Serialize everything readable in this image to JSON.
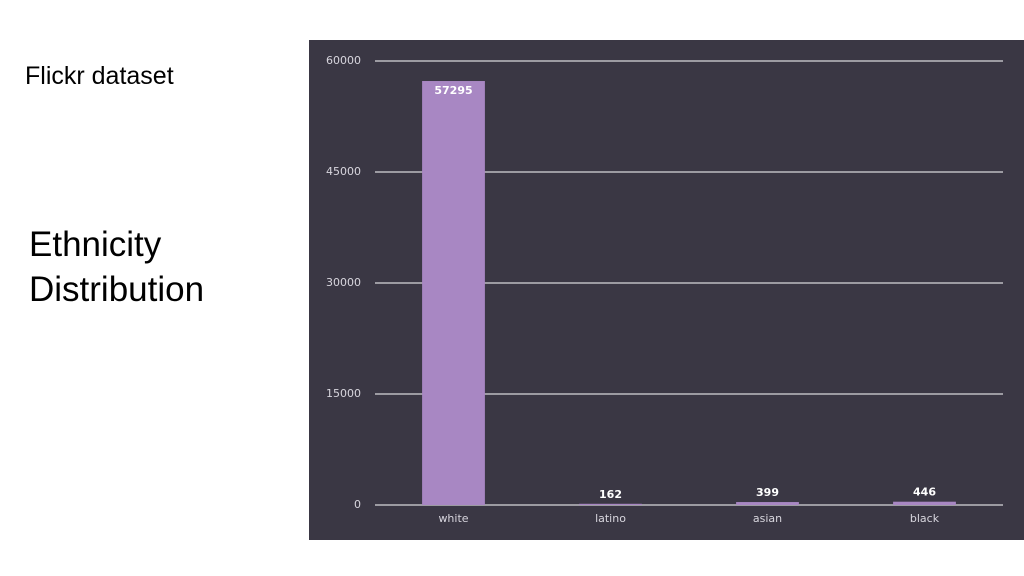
{
  "chart_data": {
    "type": "bar",
    "title": "Ethnicity Distribution",
    "subtitle": "Flickr dataset",
    "categories": [
      "white",
      "latino",
      "asian",
      "black"
    ],
    "values": [
      57295,
      162,
      399,
      446
    ],
    "color": "#a887c3",
    "ylim": [
      0,
      60000
    ],
    "yticks": [
      0,
      15000,
      30000,
      45000,
      60000
    ],
    "grid": true
  }
}
